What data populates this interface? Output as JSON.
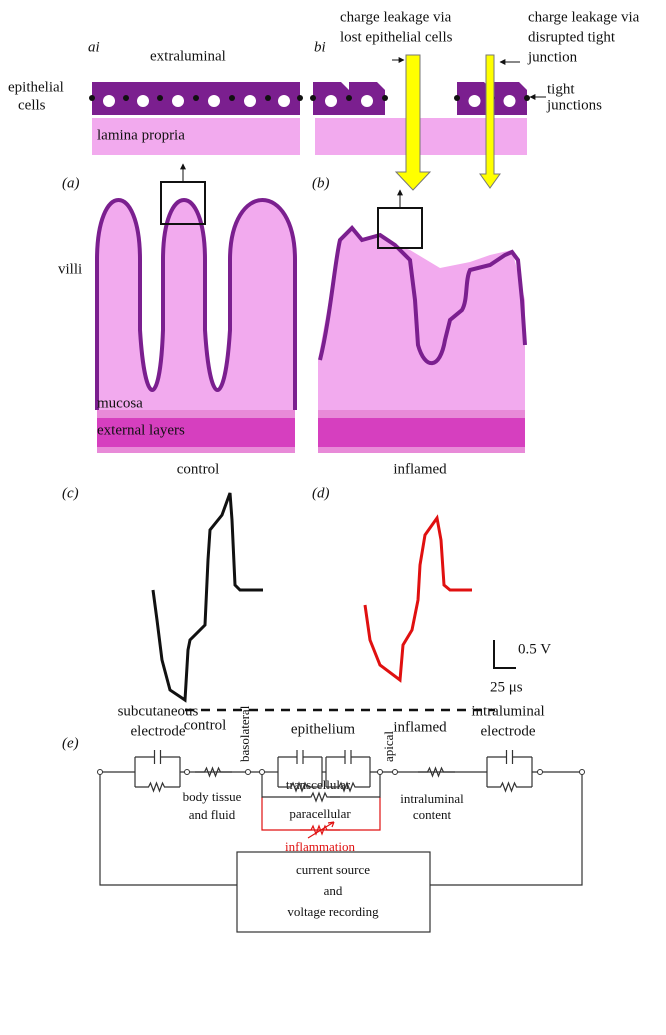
{
  "panel_a_i": {
    "label": "ai",
    "extraluminal": "extraluminal",
    "epithelial_cells": [
      "epithelial",
      "cells"
    ],
    "lamina_propria": "lamina propria"
  },
  "panel_b_i": {
    "label": "bi",
    "leak_lost": [
      "charge leakage via",
      "lost epithelial cells"
    ],
    "leak_junction": [
      "charge leakage via",
      "disrupted tight",
      "junction"
    ],
    "tight_junctions": [
      "tight",
      "junctions"
    ]
  },
  "panel_a": {
    "label": "(a)",
    "villi": "villi",
    "mucosa": "mucosa",
    "external_layers": "external layers",
    "caption": "control"
  },
  "panel_b": {
    "label": "(b)",
    "caption": "inflamed"
  },
  "panel_c": {
    "label": "(c)",
    "caption": "control"
  },
  "panel_d": {
    "label": "(d)",
    "caption": "inflamed"
  },
  "scale": {
    "voltage": "0.5 V",
    "time": "25 μs"
  },
  "panel_e": {
    "label": "(e)",
    "subcutaneous_electrode": [
      "subcutaneous",
      "electrode"
    ],
    "basolateral": "basolateral",
    "epithelium": "epithelium",
    "apical": "apical",
    "intraluminal_electrode": [
      "intraluminal",
      "electrode"
    ],
    "body_tissue": [
      "body tissue",
      "and fluid"
    ],
    "transcellular": "transcellular",
    "intraluminal_content": [
      "intraluminal",
      "content"
    ],
    "paracellular": "paracellular",
    "inflammation": "inflammation",
    "source": [
      "current source",
      "and",
      "voltage recording"
    ]
  }
}
